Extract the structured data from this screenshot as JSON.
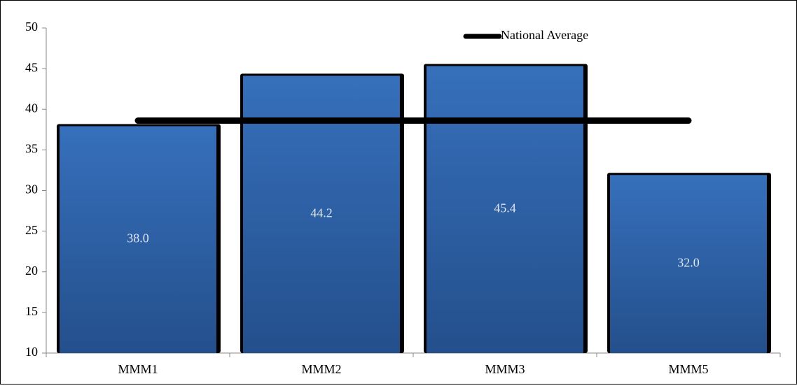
{
  "chart_data": {
    "type": "bar",
    "categories": [
      "MMM1",
      "MMM2",
      "MMM3",
      "MMM5"
    ],
    "series": [
      {
        "values": [
          38.0,
          44.2,
          45.4,
          32.0
        ],
        "value_labels": [
          "38.0",
          "44.2",
          "45.4",
          "32.0"
        ],
        "color": "#2f63aa"
      },
      {
        "name": "National Average",
        "type": "line",
        "values": [
          38.6,
          38.6,
          38.6,
          38.6
        ],
        "color": "#000000"
      }
    ],
    "ylim": [
      10,
      50
    ],
    "yticks": [
      10,
      15,
      20,
      25,
      30,
      35,
      40,
      45,
      50
    ],
    "grid": false,
    "legend": "top"
  }
}
